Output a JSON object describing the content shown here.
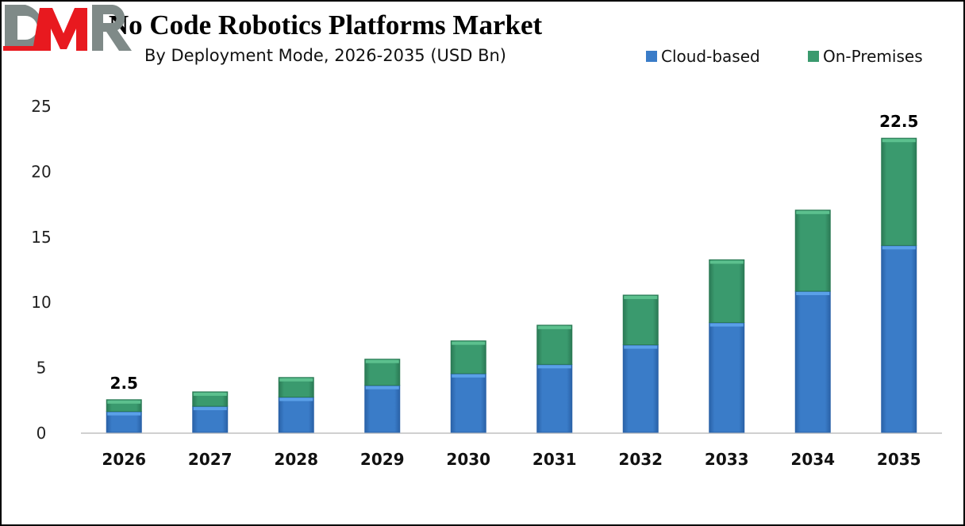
{
  "chart_data": {
    "type": "bar",
    "stacked": true,
    "title": "No Code Robotics Platforms Market",
    "subtitle": "By Deployment Mode, 2026-2035 (USD Bn)",
    "categories": [
      "2026",
      "2027",
      "2028",
      "2029",
      "2030",
      "2031",
      "2032",
      "2033",
      "2034",
      "2035"
    ],
    "series": [
      {
        "name": "Cloud-based",
        "color": "#3a7cc8",
        "values": [
          1.6,
          2.0,
          2.7,
          3.6,
          4.5,
          5.2,
          6.7,
          8.4,
          10.8,
          14.3
        ]
      },
      {
        "name": "On-Premises",
        "color": "#3a9a6e",
        "values": [
          0.9,
          1.1,
          1.5,
          2.0,
          2.5,
          3.0,
          3.8,
          4.8,
          6.2,
          8.2
        ]
      }
    ],
    "data_labels": [
      {
        "category": "2026",
        "text": "2.5"
      },
      {
        "category": "2035",
        "text": "22.5"
      }
    ],
    "ylim": [
      0,
      25
    ],
    "yticks": [
      "0",
      "5",
      "10",
      "15",
      "20",
      "25"
    ],
    "grid": false,
    "legend_position": "top-right",
    "xlabel": "",
    "ylabel": ""
  },
  "logo": {
    "text": "DMR",
    "colors": [
      "#7f8a88",
      "#e8191f"
    ]
  }
}
